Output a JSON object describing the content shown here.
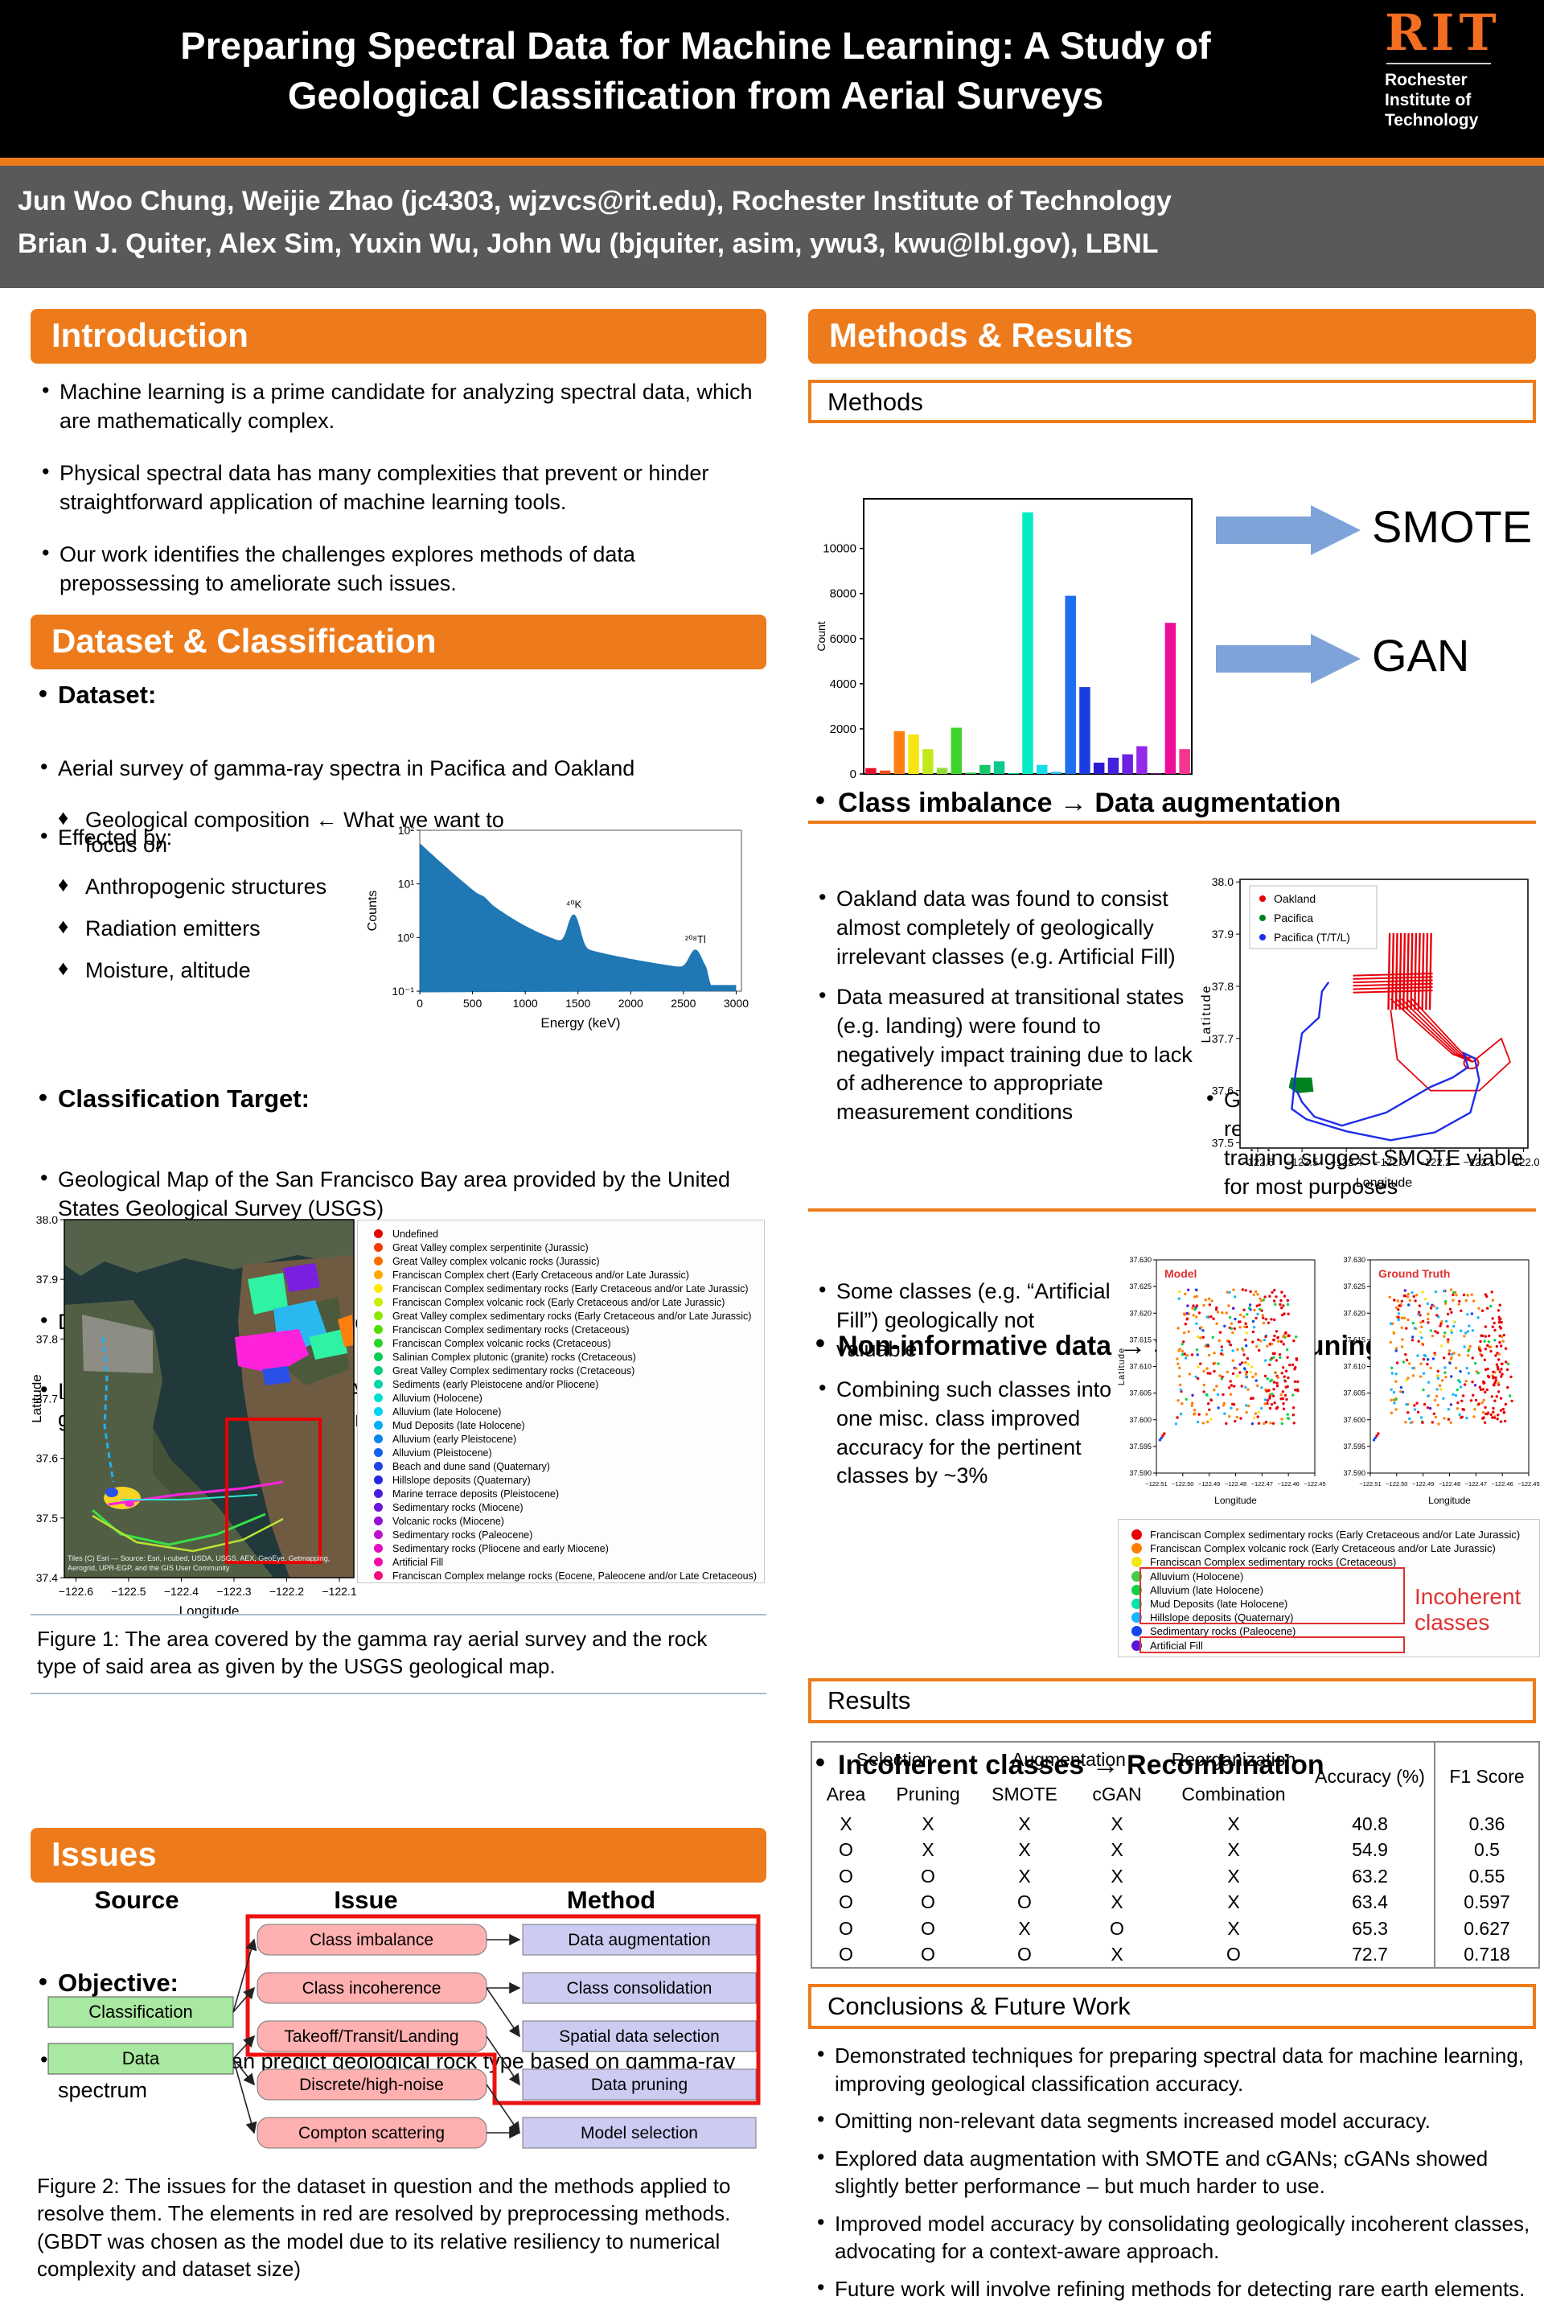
{
  "accent_color": "#ED7B1B",
  "header": {
    "title_line1": "Preparing Spectral Data for Machine Learning: A Study of",
    "title_line2": "Geological Classification from Aerial Surveys",
    "logo": {
      "brand": "RIT",
      "subtext": "Rochester\nInstitute of\nTechnology"
    }
  },
  "authors": {
    "line1": "Jun Woo Chung, Weijie Zhao (jc4303, wjzvcs@rit.edu), Rochester Institute of Technology",
    "line2": "Brian J. Quiter, Alex Sim, Yuxin Wu, John Wu (bjquiter, asim, ywu3, kwu@lbl.gov), LBNL"
  },
  "left": {
    "introduction": {
      "heading": "Introduction",
      "bullets": [
        "Machine learning is a prime candidate for analyzing spectral data, which are mathematically complex.",
        "Physical spectral data has many complexities that prevent or hinder straightforward application of machine learning tools.",
        "Our work identifies the challenges explores methods of data prepossessing to ameliorate such issues."
      ]
    },
    "dataset": {
      "heading": "Dataset & Classification",
      "label": "Dataset:",
      "bullets": [
        "Aerial survey of gamma-ray spectra in Pacifica and Oakland",
        "Effected by:"
      ],
      "effected_by": [
        "Geological composition ← What we want to focus on",
        "Anthropogenic structures",
        "Radiation emitters",
        "Moisture, altitude"
      ]
    },
    "classification_target": {
      "label": "Classification Target:",
      "bullets": [
        "Geological Map of the San Francisco Bay area provided by the United States Geological Survey (USGS)",
        "Divided into rock type and geological age",
        "Includes several classes (e.g. Alluvium, Artificial Fill) for which meaning geological analysis or character prediction is not viable"
      ]
    },
    "figure1": {
      "caption": "Figure 1: The area covered by the gamma ray aerial survey and the rock type of said area as given by the USGS geological map.",
      "map": {
        "xlabel": "Longitude",
        "ylabel": "Latitude",
        "xticks": [
          "−122.6",
          "−122.5",
          "−122.4",
          "−122.3",
          "−122.2",
          "−122.1"
        ],
        "yticks": [
          "38.0",
          "37.9",
          "37.8",
          "37.7",
          "37.6",
          "37.5",
          "37.4"
        ],
        "attribution_line1": "Tiles (C) Esri — Source: Esri, i-cubed, USDA, USGS, AEX, GeoEye, Getmapping,",
        "attribution_line2": "Aerogrid, UPR-EGP, and the GIS User Community"
      },
      "legend": [
        {
          "color": "#e50000",
          "label": "Undefined"
        },
        {
          "color": "#f03c00",
          "label": "Great Valley complex serpentinite (Jurassic)"
        },
        {
          "color": "#ff6d00",
          "label": "Great Valley complex volcanic rocks (Jurassic)"
        },
        {
          "color": "#ffa800",
          "label": "Franciscan Complex chert (Early Cretaceous and/or Late Jurassic)"
        },
        {
          "color": "#ffe900",
          "label": "Franciscan Complex sedimentary rocks (Early Cretaceous and/or Late Jurassic)"
        },
        {
          "color": "#c8f000",
          "label": "Franciscan Complex volcanic rock (Early Cretaceous and/or Late Jurassic)"
        },
        {
          "color": "#8ce800",
          "label": "Great Valley complex sedimentary rocks (Early Cretaceous and/or Late Jurassic)"
        },
        {
          "color": "#52de00",
          "label": "Franciscan Complex sedimentary rocks (Cretaceous)"
        },
        {
          "color": "#28d428",
          "label": "Franciscan Complex volcanic rocks (Cretaceous)"
        },
        {
          "color": "#0acc52",
          "label": "Salinian Complex plutonic (granite) rocks (Cretaceous)"
        },
        {
          "color": "#00ce7c",
          "label": "Great Valley Complex sedimentary rocks (Cretaceous)"
        },
        {
          "color": "#00d6a8",
          "label": "Sediments (early Pleistocene and/or Pliocene)"
        },
        {
          "color": "#00e0d0",
          "label": "Alluvium (Holocene)"
        },
        {
          "color": "#00d2f0",
          "label": "Alluvium (late Holocene)"
        },
        {
          "color": "#00aef5",
          "label": "Mud Deposits (late Holocene)"
        },
        {
          "color": "#0a85f0",
          "label": "Alluvium (early Pleistocene)"
        },
        {
          "color": "#1460eb",
          "label": "Alluvium (Pleistocene)"
        },
        {
          "color": "#1e42e6",
          "label": "Beach and dune sand (Quaternary)"
        },
        {
          "color": "#2828e0",
          "label": "Hillslope deposits (Quaternary)"
        },
        {
          "color": "#4a1edc",
          "label": "Marine terrace deposits (Pleistocene)"
        },
        {
          "color": "#6e14d8",
          "label": "Sedimentary rocks (Miocene)"
        },
        {
          "color": "#9612d2",
          "label": "Volcanic rocks (Miocene)"
        },
        {
          "color": "#be10ce",
          "label": "Sedimentary rocks (Paleocene)"
        },
        {
          "color": "#e00ec0",
          "label": "Sedimentary rocks (Pliocene and early Miocene)"
        },
        {
          "color": "#f50ca4",
          "label": "Artificial Fill"
        },
        {
          "color": "#fa0a78",
          "label": "Franciscan Complex melange rocks (Eocene, Paleocene and/or Late Cretaceous)"
        }
      ]
    },
    "objective": {
      "label": "Objective:",
      "bullet": "Train model that can predict geological rock type based on gamma-ray spectrum"
    },
    "issues": {
      "heading": "Issues",
      "diagram": {
        "headers": [
          "Source",
          "Issue",
          "Method"
        ],
        "sources": [
          "Classification",
          "Data"
        ],
        "issues": [
          "Class imbalance",
          "Class incoherence",
          "Takeoff/Transit/Landing",
          "Discrete/high-noise",
          "Compton scattering"
        ],
        "methods": [
          "Data augmentation",
          "Class consolidation",
          "Spatial data selection",
          "Data pruning",
          "Model selection"
        ]
      },
      "caption_line1": "Figure 2: The issues for the dataset in question and the methods applied to resolve them. The elements in red are resolved by preprocessing methods.",
      "caption_line2": "(GBDT was chosen as the model due to its relative resiliency to numerical complexity and dataset size)"
    }
  },
  "right": {
    "heading": "Methods & Results",
    "methods_label": "Methods",
    "class_imbalance": {
      "heading": "Class  imbalance → Data augmentation",
      "arrow_labels": [
        "SMOTE",
        "GAN"
      ],
      "note": "GAN returned slightly better results, but complexities in training suggest SMOTE viable for most purposes"
    },
    "pruning": {
      "heading": "Non-informative data → Selective pruning",
      "bullets": [
        "Oakland data was found to consist almost completely of geologically irrelevant classes (e.g. Artificial Fill)",
        "Data measured at transitional states (e.g. landing) were found to negatively impact training due to lack of adherence to appropriate measurement conditions"
      ]
    },
    "recombination": {
      "heading": "Incoherent classes → Recombination",
      "bullets": [
        "Some classes (e.g. “Artificial Fill”) geologically not valuable",
        "Combining such classes into one misc. class improved accuracy for the pertinent classes by ~3%"
      ],
      "incoherent_label": "Incoherent classes",
      "legend": [
        {
          "color": "#e8000b",
          "label": "Franciscan Complex sedimentary rocks (Early Cretaceous and/or Late Jurassic)",
          "boxed": false
        },
        {
          "color": "#ff8000",
          "label": "Franciscan Complex volcanic rock (Early Cretaceous and/or Late Jurassic)",
          "boxed": false
        },
        {
          "color": "#f5e616",
          "label": "Franciscan Complex sedimentary rocks (Cretaceous)",
          "boxed": false
        },
        {
          "color": "#47cc47",
          "label": "Alluvium (Holocene)",
          "boxed": true
        },
        {
          "color": "#0ed145",
          "label": "Alluvium (late Holocene)",
          "boxed": true
        },
        {
          "color": "#00e6a8",
          "label": "Mud Deposits (late Holocene)",
          "boxed": true
        },
        {
          "color": "#19b5fe",
          "label": "Hillslope deposits (Quaternary)",
          "boxed": true
        },
        {
          "color": "#1545e8",
          "label": "Sedimentary rocks (Paleocene)",
          "boxed": false
        },
        {
          "color": "#5a14dc",
          "label": "Artificial Fill",
          "boxed": true
        }
      ]
    },
    "results": {
      "label": "Results",
      "table": {
        "groups": [
          {
            "label": "Selection",
            "span": 2
          },
          {
            "label": "Augmentation",
            "span": 2
          },
          {
            "label": "Reorganization",
            "span": 1
          }
        ],
        "subcolumns": [
          "Area",
          "Pruning",
          "SMOTE",
          "cGAN",
          "Combination"
        ],
        "metric_columns": [
          "Accuracy (%)",
          "F1 Score"
        ],
        "rows": [
          [
            "X",
            "X",
            "X",
            "X",
            "X",
            "40.8",
            "0.36"
          ],
          [
            "O",
            "X",
            "X",
            "X",
            "X",
            "54.9",
            "0.5"
          ],
          [
            "O",
            "O",
            "X",
            "X",
            "X",
            "63.2",
            "0.55"
          ],
          [
            "O",
            "O",
            "O",
            "X",
            "X",
            "63.4",
            "0.597"
          ],
          [
            "O",
            "O",
            "X",
            "O",
            "X",
            "65.3",
            "0.627"
          ],
          [
            "O",
            "O",
            "O",
            "X",
            "O",
            "72.7",
            "0.718"
          ]
        ]
      }
    },
    "conclusions": {
      "label": "Conclusions & Future Work",
      "bullets": [
        "Demonstrated techniques for preparing spectral data for machine learning, improving geological classification accuracy.",
        "Omitting non-relevant data segments increased model accuracy.",
        "Explored data augmentation with SMOTE and cGANs; cGANs showed slightly better performance – but much harder to use.",
        "Improved model accuracy by consolidating geologically incoherent classes, advocating for a context-aware approach.",
        "Future work will involve refining methods for detecting rare earth elements."
      ]
    }
  },
  "chart_data": [
    {
      "id": "class_count_histogram",
      "type": "bar",
      "title": "",
      "xlabel": "",
      "ylabel": "Count",
      "ylim": [
        0,
        12200
      ],
      "yticks": [
        0,
        2000,
        4000,
        6000,
        8000,
        10000
      ],
      "values": [
        260,
        150,
        1900,
        1750,
        1100,
        270,
        2050,
        60,
        400,
        560,
        40,
        11600,
        400,
        90,
        7900,
        3850,
        500,
        720,
        870,
        1230,
        20,
        6700,
        1100
      ],
      "colors": [
        "#e8112d",
        "#f4501e",
        "#ff7f0e",
        "#f7e411",
        "#c3e81c",
        "#93dc37",
        "#3fd42c",
        "#2ecc52",
        "#17c96c",
        "#0bca8f",
        "#06d2b0",
        "#05ecc4",
        "#18dce8",
        "#29b3f2",
        "#1d6ef0",
        "#1b3ce0",
        "#2a1bd2",
        "#4520dc",
        "#6b22e2",
        "#9429ec",
        "#b822d8",
        "#ef0e9a",
        "#f4368e"
      ],
      "legend_position": "none",
      "grid": false
    },
    {
      "id": "gamma_spectrum",
      "type": "area",
      "xlabel": "Energy (keV)",
      "ylabel": "Counts",
      "xticks": [
        0,
        500,
        1000,
        1500,
        2000,
        2500,
        3000
      ],
      "ytick_labels": [
        "10²",
        "10¹",
        "10⁰",
        "10⁻¹"
      ],
      "yscale": "log",
      "fill_color": "#1f77b4",
      "annotations": [
        {
          "label": "⁴⁰K",
          "x": 1460
        },
        {
          "label": "²⁰⁸Tl",
          "x": 2614
        }
      ],
      "grid": false
    },
    {
      "id": "flight_path_scatter",
      "type": "scatter",
      "xlabel": "Longitude",
      "ylabel": "Latitude",
      "xlim": [
        -122.64,
        -121.99
      ],
      "ylim": [
        37.49,
        38.005
      ],
      "xtick_labels": [
        "−122.6",
        "−122.5",
        "−122.4",
        "−122.3",
        "−122.2",
        "−122.1",
        "−122.0"
      ],
      "ytick_labels": [
        "38.0",
        "37.9",
        "37.8",
        "37.7",
        "37.6",
        "37.5"
      ],
      "legend": [
        {
          "label": "Oakland",
          "color": "#e8000b"
        },
        {
          "label": "Pacifica",
          "color": "#00811f"
        },
        {
          "label": "Pacifica (T/T/L)",
          "color": "#1f2de8"
        }
      ],
      "legend_position": "upper left",
      "grid": false
    },
    {
      "id": "model_vs_ground_truth",
      "type": "scatter",
      "titles": [
        "Model",
        "Ground Truth"
      ],
      "title_color": "#e03131",
      "xlabel": "Longitude",
      "ylabel": "Latitude",
      "xlim": [
        -122.513,
        -122.447
      ],
      "ylim": [
        37.59,
        37.63
      ],
      "xtick_labels": [
        "−122.51",
        "−122.50",
        "−122.49",
        "−122.48",
        "−122.47",
        "−122.46",
        "−122.45"
      ],
      "ytick_labels": [
        "37.630",
        "37.625",
        "37.620",
        "37.615",
        "37.610",
        "37.605",
        "37.600",
        "37.595",
        "37.590"
      ],
      "grid": false
    }
  ]
}
